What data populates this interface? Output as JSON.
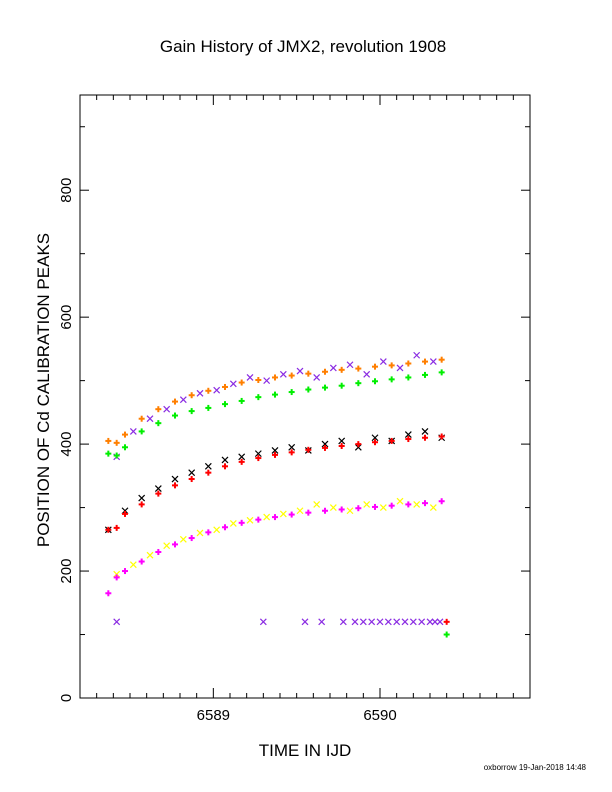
{
  "chart_data": {
    "type": "scatter",
    "title": "Gain History of JMX2, revolution 1908",
    "xlabel": "TIME IN IJD",
    "ylabel": "POSITION OF Cd CALIBRATION PEAKS",
    "xlim": [
      6588.2,
      6590.9
    ],
    "ylim": [
      0,
      950
    ],
    "x_ticks": [
      6589,
      6590
    ],
    "y_ticks": [
      0,
      200,
      400,
      600,
      800
    ],
    "grid": false,
    "legend": "none",
    "colors": {
      "purple_points": "#8a2be2",
      "orange_fit": "#ff7f00",
      "green_fit": "#00ee00",
      "black_points": "#000000",
      "red_fit": "#ff0000",
      "yellow_points": "#ffff00",
      "magenta_fit": "#ff00ff"
    },
    "series": [
      {
        "id": "purple-points",
        "color": "#8a2be2",
        "marker": "x",
        "x": [
          6588.42,
          6588.52,
          6588.62,
          6588.72,
          6588.82,
          6588.92,
          6589.02,
          6589.12,
          6589.22,
          6589.32,
          6589.42,
          6589.52,
          6589.62,
          6589.72,
          6589.82,
          6589.92,
          6590.02,
          6590.12,
          6590.22,
          6590.32
        ],
        "y": [
          380,
          420,
          440,
          455,
          470,
          480,
          485,
          495,
          505,
          500,
          510,
          515,
          505,
          520,
          525,
          510,
          530,
          520,
          540,
          530
        ]
      },
      {
        "id": "orange-fit",
        "color": "#ff7f00",
        "marker": "+",
        "x": [
          6588.37,
          6588.42,
          6588.47,
          6588.57,
          6588.67,
          6588.77,
          6588.87,
          6588.97,
          6589.07,
          6589.17,
          6589.27,
          6589.37,
          6589.47,
          6589.57,
          6589.67,
          6589.77,
          6589.87,
          6589.97,
          6590.07,
          6590.17,
          6590.27,
          6590.37
        ],
        "y": [
          405,
          402,
          415,
          440,
          455,
          467,
          477,
          484,
          490,
          497,
          501,
          505,
          508,
          511,
          514,
          517,
          519,
          522,
          524,
          527,
          530,
          533
        ]
      },
      {
        "id": "green-fit",
        "color": "#00ee00",
        "marker": "+",
        "x": [
          6588.37,
          6588.42,
          6588.47,
          6588.57,
          6588.67,
          6588.77,
          6588.87,
          6588.97,
          6589.07,
          6589.17,
          6589.27,
          6589.37,
          6589.47,
          6589.57,
          6589.67,
          6589.77,
          6589.87,
          6589.97,
          6590.07,
          6590.17,
          6590.27,
          6590.37
        ],
        "y": [
          385,
          382,
          395,
          420,
          433,
          445,
          452,
          457,
          463,
          468,
          474,
          478,
          482,
          486,
          489,
          492,
          496,
          499,
          502,
          505,
          509,
          513
        ]
      },
      {
        "id": "black-points",
        "color": "#000000",
        "marker": "x",
        "x": [
          6588.37,
          6588.47,
          6588.57,
          6588.67,
          6588.77,
          6588.87,
          6588.97,
          6589.07,
          6589.17,
          6589.27,
          6589.37,
          6589.47,
          6589.57,
          6589.67,
          6589.77,
          6589.87,
          6589.97,
          6590.07,
          6590.17,
          6590.27,
          6590.37
        ],
        "y": [
          265,
          295,
          315,
          330,
          345,
          355,
          365,
          375,
          380,
          385,
          390,
          395,
          390,
          400,
          405,
          395,
          410,
          405,
          415,
          420,
          410
        ]
      },
      {
        "id": "red-fit",
        "color": "#ff0000",
        "marker": "+",
        "x": [
          6588.37,
          6588.42,
          6588.47,
          6588.57,
          6588.67,
          6588.77,
          6588.87,
          6588.97,
          6589.07,
          6589.17,
          6589.27,
          6589.37,
          6589.47,
          6589.57,
          6589.67,
          6589.77,
          6589.87,
          6589.97,
          6590.07,
          6590.17,
          6590.27,
          6590.37
        ],
        "y": [
          265,
          268,
          290,
          305,
          322,
          335,
          345,
          355,
          365,
          372,
          378,
          383,
          387,
          391,
          394,
          397,
          400,
          403,
          405,
          408,
          410,
          412
        ]
      },
      {
        "id": "yellow-points",
        "color": "#ffff00",
        "marker": "x",
        "x": [
          6588.42,
          6588.52,
          6588.62,
          6588.72,
          6588.82,
          6588.92,
          6589.02,
          6589.12,
          6589.22,
          6589.32,
          6589.42,
          6589.52,
          6589.62,
          6589.72,
          6589.82,
          6589.92,
          6590.02,
          6590.12,
          6590.22,
          6590.32
        ],
        "y": [
          195,
          210,
          225,
          240,
          250,
          260,
          265,
          275,
          280,
          285,
          290,
          295,
          305,
          300,
          295,
          305,
          300,
          310,
          305,
          300
        ]
      },
      {
        "id": "magenta-fit",
        "color": "#ff00ff",
        "marker": "+",
        "x": [
          6588.37,
          6588.42,
          6588.47,
          6588.57,
          6588.67,
          6588.77,
          6588.87,
          6588.97,
          6589.07,
          6589.17,
          6589.27,
          6589.37,
          6589.47,
          6589.57,
          6589.67,
          6589.77,
          6589.87,
          6589.97,
          6590.07,
          6590.17,
          6590.27,
          6590.37
        ],
        "y": [
          165,
          190,
          200,
          215,
          230,
          242,
          252,
          261,
          269,
          276,
          281,
          285,
          289,
          292,
          295,
          297,
          299,
          301,
          303,
          305,
          307,
          310
        ]
      },
      {
        "id": "purple-low-row",
        "color": "#8a2be2",
        "marker": "x",
        "x": [
          6588.42,
          6589.3,
          6589.55,
          6589.65,
          6589.78,
          6589.85,
          6589.9,
          6589.95,
          6590.0,
          6590.05,
          6590.1,
          6590.15,
          6590.2,
          6590.25,
          6590.3,
          6590.33,
          6590.36
        ],
        "y": [
          120,
          120,
          120,
          120,
          120,
          120,
          120,
          120,
          120,
          120,
          120,
          120,
          120,
          120,
          120,
          120,
          120
        ]
      },
      {
        "id": "green-low-point",
        "color": "#00ee00",
        "marker": "+",
        "x": [
          6590.4
        ],
        "y": [
          100
        ]
      },
      {
        "id": "red-low-point",
        "color": "#ff0000",
        "marker": "+",
        "x": [
          6590.4
        ],
        "y": [
          120
        ]
      }
    ]
  },
  "footer": "oxborrow 19-Jan-2018 14:48"
}
